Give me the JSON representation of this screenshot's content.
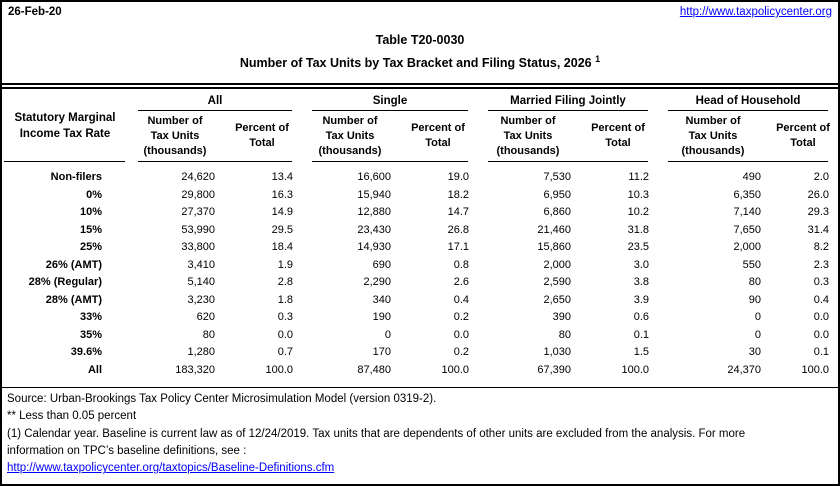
{
  "page": {
    "date": "26-Feb-20",
    "top_link": "http://www.taxpolicycenter.org",
    "title_line1": "Table T20-0030",
    "title_line2": "Number of Tax Units by Tax Bracket and Filing Status, 2026",
    "title_footnote": "1"
  },
  "table": {
    "row_header": {
      "line1": "Statutory Marginal",
      "line2": "Income Tax Rate"
    },
    "groups": [
      "All",
      "Single",
      "Married Filing Jointly",
      "Head of Household"
    ],
    "col_number_label": {
      "line1": "Number of",
      "line2": "Tax Units",
      "line3": "(thousands)"
    },
    "col_percent_label": {
      "line1": "Percent of",
      "line2": "Total"
    },
    "rows": [
      {
        "label": "Non-filers",
        "cells": [
          "24,620",
          "13.4",
          "16,600",
          "19.0",
          "7,530",
          "11.2",
          "490",
          "2.0"
        ]
      },
      {
        "label": "0%",
        "cells": [
          "29,800",
          "16.3",
          "15,940",
          "18.2",
          "6,950",
          "10.3",
          "6,350",
          "26.0"
        ]
      },
      {
        "label": "10%",
        "cells": [
          "27,370",
          "14.9",
          "12,880",
          "14.7",
          "6,860",
          "10.2",
          "7,140",
          "29.3"
        ]
      },
      {
        "label": "15%",
        "cells": [
          "53,990",
          "29.5",
          "23,430",
          "26.8",
          "21,460",
          "31.8",
          "7,650",
          "31.4"
        ]
      },
      {
        "label": "25%",
        "cells": [
          "33,800",
          "18.4",
          "14,930",
          "17.1",
          "15,860",
          "23.5",
          "2,000",
          "8.2"
        ]
      },
      {
        "label": "26% (AMT)",
        "cells": [
          "3,410",
          "1.9",
          "690",
          "0.8",
          "2,000",
          "3.0",
          "550",
          "2.3"
        ]
      },
      {
        "label": "28% (Regular)",
        "cells": [
          "5,140",
          "2.8",
          "2,290",
          "2.6",
          "2,590",
          "3.8",
          "80",
          "0.3"
        ]
      },
      {
        "label": "28% (AMT)",
        "cells": [
          "3,230",
          "1.8",
          "340",
          "0.4",
          "2,650",
          "3.9",
          "90",
          "0.4"
        ]
      },
      {
        "label": "33%",
        "cells": [
          "620",
          "0.3",
          "190",
          "0.2",
          "390",
          "0.6",
          "0",
          "0.0"
        ]
      },
      {
        "label": "35%",
        "cells": [
          "80",
          "0.0",
          "0",
          "0.0",
          "80",
          "0.1",
          "0",
          "0.0"
        ]
      },
      {
        "label": "39.6%",
        "cells": [
          "1,280",
          "0.7",
          "170",
          "0.2",
          "1,030",
          "1.5",
          "30",
          "0.1"
        ]
      },
      {
        "label": "All",
        "cells": [
          "183,320",
          "100.0",
          "87,480",
          "100.0",
          "67,390",
          "100.0",
          "24,370",
          "100.0"
        ]
      }
    ]
  },
  "footer": {
    "source": "Source: Urban-Brookings Tax Policy Center Microsimulation Model (version 0319-2).",
    "note_stars": "** Less than 0.05 percent",
    "note1_line1": "(1) Calendar year. Baseline is current law as of 12/24/2019. Tax units that are dependents of other units are excluded from the analysis. For more",
    "note1_line2": "information on TPC’s baseline definitions, see :",
    "link": "http://www.taxpolicycenter.org/taxtopics/Baseline-Definitions.cfm"
  },
  "colors": {
    "link": "#0000FF",
    "text": "#000000",
    "background": "#FFFFFF"
  }
}
